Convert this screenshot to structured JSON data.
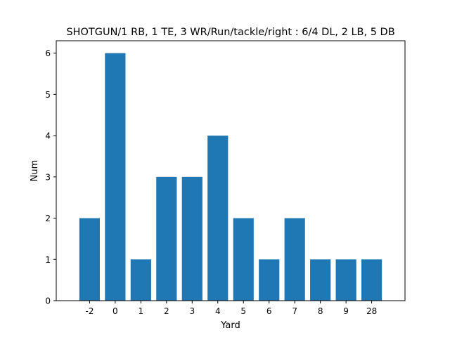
{
  "chart_data": {
    "type": "bar",
    "title": "SHOTGUN/1 RB, 1 TE, 3 WR/Run/tackle/right : 6/4 DL, 2 LB, 5 DB",
    "xlabel": "Yard",
    "ylabel": "Num",
    "categories": [
      "-2",
      "0",
      "1",
      "2",
      "3",
      "4",
      "5",
      "6",
      "7",
      "8",
      "9",
      "28"
    ],
    "values": [
      2,
      6,
      1,
      3,
      3,
      4,
      2,
      1,
      2,
      1,
      1,
      1
    ],
    "ylim": [
      0,
      6.3
    ],
    "yticks": [
      0,
      1,
      2,
      3,
      4,
      5,
      6
    ],
    "bar_color": "#1f77b4",
    "grid": false,
    "legend": "none"
  }
}
